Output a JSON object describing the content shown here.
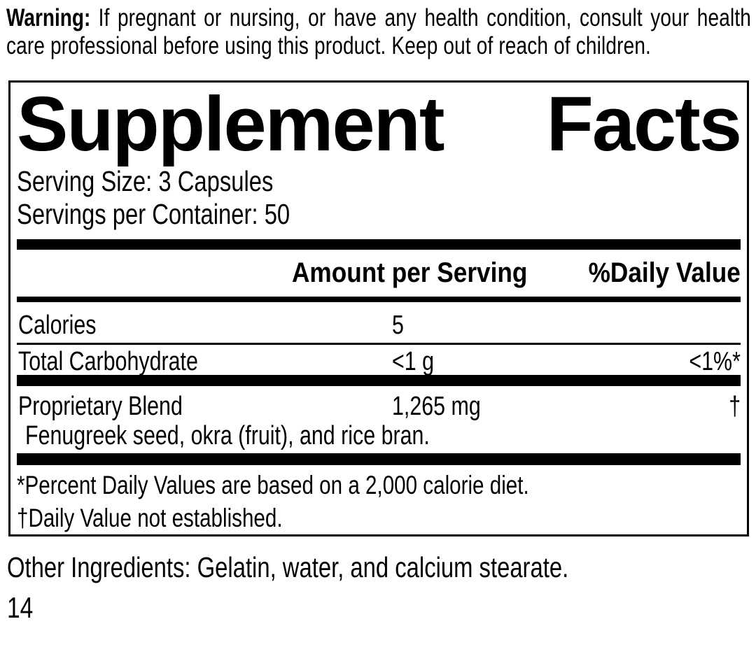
{
  "colors": {
    "ink": "#000000",
    "background": "#ffffff"
  },
  "warning": {
    "lead": "Warning:",
    "body": " If pregnant or nursing, or have any health condition, consult your health care professional before using this product. Keep out of reach of children."
  },
  "facts": {
    "title_word1": "Supplement",
    "title_word2": "Facts",
    "serving_size": "Serving Size: 3 Capsules",
    "servings_per_container": "Servings per Container: 50",
    "columns": {
      "amount": "Amount per Serving",
      "daily_value": "%Daily Value"
    },
    "rows": [
      {
        "name": "Calories",
        "amount": "5",
        "daily_value": ""
      },
      {
        "name": "Total Carbohydrate",
        "amount": "<1 g",
        "daily_value": "<1%*"
      },
      {
        "name": "Proprietary Blend",
        "amount": "1,265 mg",
        "daily_value": "†",
        "ingredients": "Fenugreek seed, okra (fruit), and rice bran."
      }
    ],
    "footnotes": [
      "*Percent Daily Values are based on a 2,000 calorie diet.",
      "†Daily Value not established."
    ]
  },
  "other_ingredients": "Other Ingredients: Gelatin, water, and calcium stearate.",
  "page_number": "14"
}
